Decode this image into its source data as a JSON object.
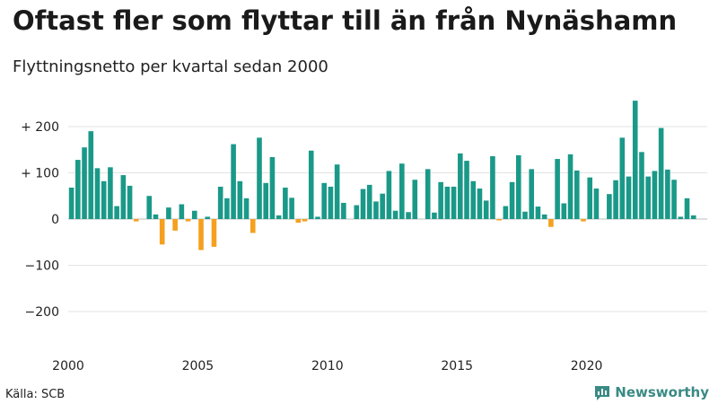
{
  "chart_data": {
    "type": "bar",
    "title": "Oftast fler som flyttar till än från Nynäshamn",
    "subtitle": "Flyttningsnetto per kvartal sedan 2000",
    "xlabel": "",
    "ylabel": "",
    "ylim": [
      -250,
      270
    ],
    "y_ticks": [
      200,
      100,
      0,
      -100,
      -200
    ],
    "y_tick_labels": [
      "+ 200",
      "+ 100",
      "0",
      "−100",
      "−200"
    ],
    "x_tick_labels": [
      "2000",
      "2005",
      "2010",
      "2015",
      "2020"
    ],
    "x_start_year": 2000,
    "x_start_quarter": 1,
    "grid": true,
    "colors": {
      "positive": "#1a9988",
      "negative": "#f5a01f"
    },
    "values": [
      68,
      128,
      155,
      190,
      110,
      82,
      112,
      28,
      95,
      72,
      -5,
      0,
      50,
      10,
      -55,
      25,
      -25,
      32,
      -5,
      18,
      -67,
      5,
      -60,
      70,
      45,
      162,
      82,
      45,
      -30,
      176,
      78,
      134,
      8,
      68,
      46,
      -8,
      -5,
      148,
      5,
      78,
      70,
      118,
      35,
      0,
      30,
      65,
      74,
      38,
      55,
      104,
      18,
      120,
      15,
      85,
      0,
      108,
      14,
      80,
      70,
      70,
      142,
      126,
      82,
      66,
      40,
      136,
      -3,
      28,
      80,
      138,
      16,
      108,
      27,
      10,
      -17,
      130,
      34,
      140,
      105,
      -5,
      90,
      66,
      0,
      54,
      84,
      176,
      92,
      256,
      145,
      92,
      104,
      197,
      107,
      85,
      5,
      45,
      8
    ]
  },
  "footer": {
    "source": "Källa: SCB",
    "brand": "Newsworthy"
  }
}
